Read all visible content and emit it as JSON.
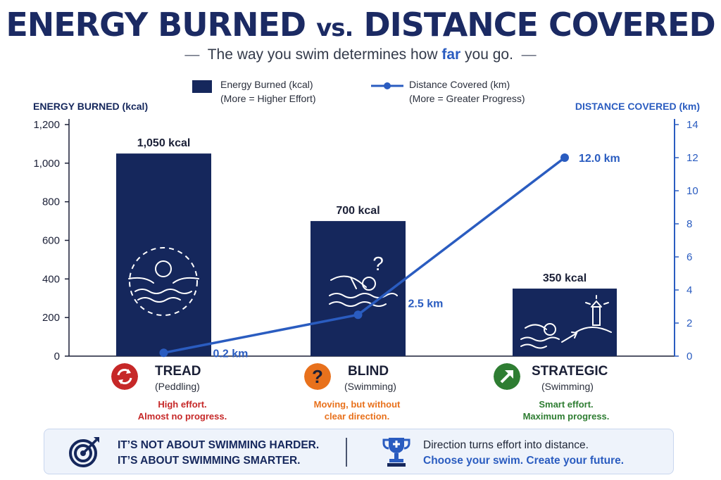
{
  "header": {
    "title_part1": "ENERGY BURNED",
    "title_vs": "vs.",
    "title_part2": "DISTANCE COVERED",
    "subtitle_dash_left": "—",
    "subtitle_before": "The way you swim determines how",
    "subtitle_emphasis": "far",
    "subtitle_after": "you go.",
    "subtitle_dash_right": "—"
  },
  "legend": {
    "energy_label": "Energy Burned (kcal)",
    "energy_note": "(More = Higher Effort)",
    "distance_label": "Distance Covered (km)",
    "distance_note": "(More = Greater Progress)"
  },
  "chart_data": {
    "type": "bar",
    "categories": [
      "TREAD",
      "BLIND",
      "STRATEGIC"
    ],
    "series": [
      {
        "name": "Energy Burned (kcal)",
        "type": "bar",
        "axis": "left",
        "values": [
          1050,
          700,
          350
        ],
        "data_labels": [
          "1,050 kcal",
          "700 kcal",
          "350 kcal"
        ],
        "color": "#15275c"
      },
      {
        "name": "Distance Covered (km)",
        "type": "line",
        "axis": "right",
        "values": [
          0.2,
          2.5,
          12.0
        ],
        "data_labels": [
          "0.2 km",
          "2.5 km",
          "12.0 km"
        ],
        "color": "#2a5cc0"
      }
    ],
    "ylabel": "ENERGY BURNED (kcal)",
    "y2label": "DISTANCE COVERED (km)",
    "ylim": [
      0,
      1200
    ],
    "y2lim": [
      0,
      14
    ],
    "y_ticks": [
      0,
      200,
      400,
      600,
      800,
      1000,
      1200
    ],
    "y_tick_labels": [
      "0",
      "200",
      "400",
      "600",
      "800",
      "1,000",
      "1,200"
    ],
    "y2_ticks": [
      0,
      2,
      4,
      6,
      8,
      10,
      12,
      14
    ],
    "y2_tick_labels": [
      "0",
      "2",
      "4",
      "6",
      "8",
      "10",
      "12",
      "14"
    ],
    "grid": false,
    "legend_position": "top-center"
  },
  "categories": [
    {
      "name": "TREAD",
      "sub": "(Peddling)",
      "note1": "High effort.",
      "note2": "Almost no progress.",
      "icon": "cycle-arrows-icon",
      "color": "#c62828"
    },
    {
      "name": "BLIND",
      "sub": "(Swimming)",
      "note1": "Moving, but without",
      "note2": "clear direction.",
      "icon": "question-mark-icon",
      "color": "#e8711c",
      "symbol": "?"
    },
    {
      "name": "STRATEGIC",
      "sub": "(Swimming)",
      "note1": "Smart effort.",
      "note2": "Maximum progress.",
      "icon": "arrow-up-right-icon",
      "color": "#2e7d32"
    }
  ],
  "banner": {
    "left_line1": "IT’S NOT ABOUT SWIMMING HARDER.",
    "left_line2": "IT’S ABOUT SWIMMING SMARTER.",
    "right_line1": "Direction turns effort into distance.",
    "right_line2": "Choose your swim. Create your future.",
    "left_icon": "target-arrow-icon",
    "right_icon": "trophy-icon"
  }
}
